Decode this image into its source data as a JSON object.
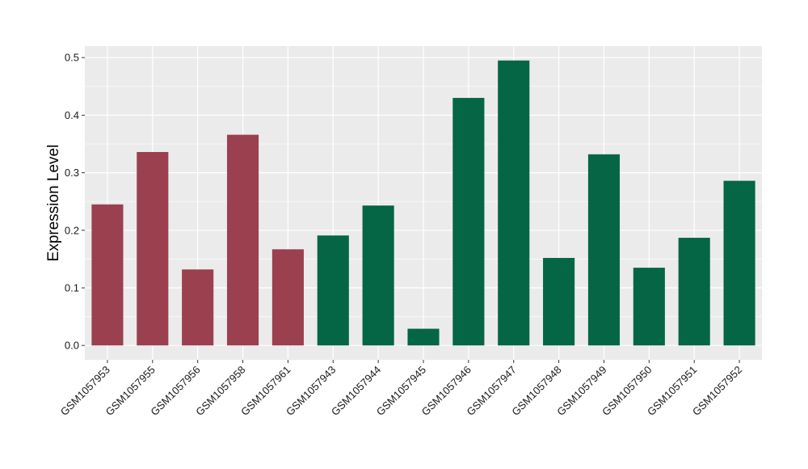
{
  "chart_data": {
    "type": "bar",
    "title": "",
    "xlabel": "",
    "ylabel": "Expression Level",
    "ylim": [
      -0.025,
      0.52
    ],
    "yticks": [
      0.0,
      0.1,
      0.2,
      0.3,
      0.4,
      0.5
    ],
    "ytick_labels": [
      "0.0",
      "0.1",
      "0.2",
      "0.3",
      "0.4",
      "0.5"
    ],
    "grid": true,
    "legend": "none",
    "colors": {
      "group_a": "#9b404f",
      "group_b": "#046644",
      "panel_bg": "#ebebeb",
      "grid": "#ffffff"
    },
    "categories": [
      "GSM1057953",
      "GSM1057955",
      "GSM1057956",
      "GSM1057958",
      "GSM1057961",
      "GSM1057943",
      "GSM1057944",
      "GSM1057945",
      "GSM1057946",
      "GSM1057947",
      "GSM1057948",
      "GSM1057949",
      "GSM1057950",
      "GSM1057951",
      "GSM1057952"
    ],
    "values": [
      0.245,
      0.336,
      0.132,
      0.366,
      0.167,
      0.191,
      0.243,
      0.029,
      0.43,
      0.495,
      0.152,
      0.332,
      0.135,
      0.187,
      0.286
    ],
    "groups": [
      "a",
      "a",
      "a",
      "a",
      "a",
      "b",
      "b",
      "b",
      "b",
      "b",
      "b",
      "b",
      "b",
      "b",
      "b"
    ]
  }
}
